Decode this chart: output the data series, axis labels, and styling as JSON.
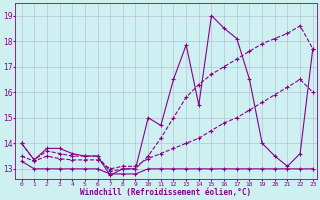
{
  "xlabel": "Windchill (Refroidissement éolien,°C)",
  "bg_color": "#cff0f0",
  "line_color": "#880088",
  "grid_color": "#aaaacc",
  "xlim": [
    -0.5,
    23.3
  ],
  "ylim": [
    12.6,
    19.5
  ],
  "yticks": [
    13,
    14,
    15,
    16,
    17,
    18,
    19
  ],
  "xticks": [
    0,
    1,
    2,
    3,
    4,
    5,
    6,
    7,
    8,
    9,
    10,
    11,
    12,
    13,
    14,
    15,
    16,
    17,
    18,
    19,
    20,
    21,
    22,
    23
  ],
  "series1_x": [
    0,
    1,
    2,
    3,
    4,
    5,
    6,
    7,
    8,
    9,
    10,
    11,
    12,
    13,
    14,
    15,
    16,
    17,
    18,
    19,
    20,
    21,
    22,
    23
  ],
  "series1_y": [
    14.0,
    13.35,
    13.8,
    13.8,
    13.6,
    13.5,
    13.5,
    12.75,
    13.0,
    13.0,
    15.0,
    14.7,
    16.5,
    17.85,
    15.5,
    19.0,
    18.5,
    18.1,
    16.5,
    14.0,
    13.5,
    13.1,
    13.6,
    17.7
  ],
  "series2_x": [
    0,
    1,
    2,
    3,
    4,
    5,
    6,
    7,
    8,
    9,
    10,
    11,
    12,
    13,
    14,
    15,
    16,
    17,
    18,
    19,
    20,
    21,
    22,
    23
  ],
  "series2_y": [
    14.0,
    13.35,
    13.7,
    13.6,
    13.5,
    13.5,
    13.5,
    12.9,
    13.0,
    13.0,
    13.5,
    14.2,
    15.0,
    15.8,
    16.3,
    16.7,
    17.0,
    17.3,
    17.6,
    17.9,
    18.1,
    18.3,
    18.6,
    17.7
  ],
  "series3_x": [
    0,
    1,
    2,
    3,
    4,
    5,
    6,
    7,
    8,
    9,
    10,
    11,
    12,
    13,
    14,
    15,
    16,
    17,
    18,
    19,
    20,
    21,
    22,
    23
  ],
  "series3_y": [
    13.3,
    13.0,
    13.0,
    13.0,
    13.0,
    13.0,
    13.0,
    12.8,
    12.8,
    12.8,
    13.0,
    13.0,
    13.0,
    13.0,
    13.0,
    13.0,
    13.0,
    13.0,
    13.0,
    13.0,
    13.0,
    13.0,
    13.0,
    13.0
  ],
  "series4_x": [
    0,
    1,
    2,
    3,
    4,
    5,
    6,
    7,
    8,
    9,
    10,
    11,
    12,
    13,
    14,
    15,
    16,
    17,
    18,
    19,
    20,
    21,
    22,
    23
  ],
  "series4_y": [
    13.5,
    13.3,
    13.5,
    13.4,
    13.35,
    13.35,
    13.35,
    13.0,
    13.1,
    13.1,
    13.4,
    13.6,
    13.8,
    14.0,
    14.2,
    14.5,
    14.8,
    15.0,
    15.3,
    15.6,
    15.9,
    16.2,
    16.5,
    16.0
  ]
}
